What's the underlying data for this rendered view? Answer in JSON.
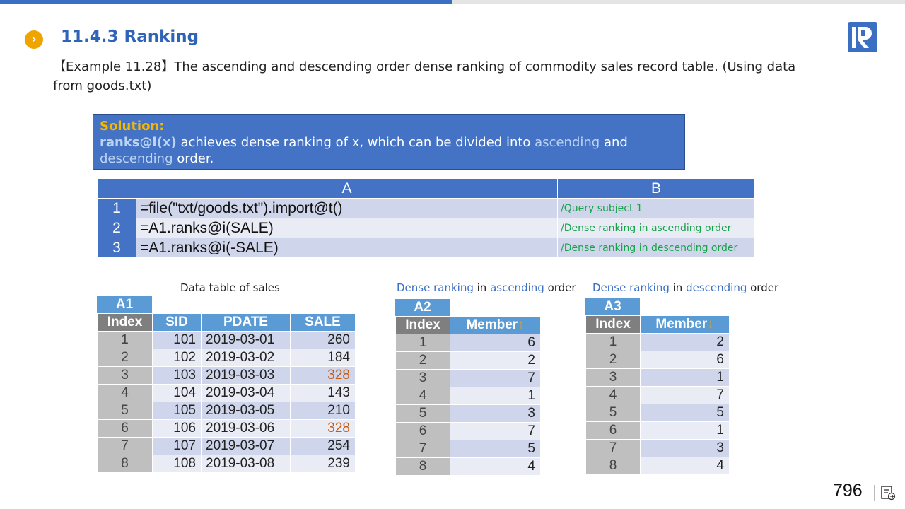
{
  "header": {
    "section_title": "11.4.3 Ranking",
    "example_text": "【Example 11.28】The ascending and descending order dense ranking of commodity sales record table. (Using data from goods.txt)"
  },
  "solution": {
    "label": "Solution:",
    "code": "ranks@i(x)",
    "text_1": " achieves dense ranking of x, which can be divided into ",
    "kw_ascending": "ascending",
    "text_2": " and ",
    "kw_descending": "descending",
    "text_3": " order."
  },
  "code_grid": {
    "col_a": "A",
    "col_b": "B",
    "rows": [
      {
        "num": "1",
        "expr": "=file(\"txt/goods.txt\").import@t()",
        "comment": "/Query subject 1"
      },
      {
        "num": "2",
        "expr": "=A1.ranks@i(SALE)",
        "comment": "/Dense ranking in ascending order"
      },
      {
        "num": "3",
        "expr": "=A1.ranks@i(-SALE)",
        "comment": "/Dense ranking in descending order"
      }
    ]
  },
  "captions": {
    "sales": "Data table of sales",
    "asc_a": "Dense ranking",
    "asc_b": " in ",
    "asc_c": "ascending",
    "asc_d": " order",
    "desc_a": "Dense ranking",
    "desc_b": " in ",
    "desc_c": "descending",
    "desc_d": " order"
  },
  "sales_table": {
    "tag": "A1",
    "headers": [
      "Index",
      "SID",
      "PDATE",
      "SALE"
    ],
    "rows": [
      [
        "1",
        "101",
        "2019-03-01",
        "260"
      ],
      [
        "2",
        "102",
        "2019-03-02",
        "184"
      ],
      [
        "3",
        "103",
        "2019-03-03",
        "328"
      ],
      [
        "4",
        "104",
        "2019-03-04",
        "143"
      ],
      [
        "5",
        "105",
        "2019-03-05",
        "210"
      ],
      [
        "6",
        "106",
        "2019-03-06",
        "328"
      ],
      [
        "7",
        "107",
        "2019-03-07",
        "254"
      ],
      [
        "8",
        "108",
        "2019-03-08",
        "239"
      ]
    ]
  },
  "asc_table": {
    "tag": "A2",
    "headers": [
      "Index",
      "Member"
    ],
    "arrow": "↑",
    "rows": [
      [
        "1",
        "6"
      ],
      [
        "2",
        "2"
      ],
      [
        "3",
        "7"
      ],
      [
        "4",
        "1"
      ],
      [
        "5",
        "3"
      ],
      [
        "6",
        "7"
      ],
      [
        "7",
        "5"
      ],
      [
        "8",
        "4"
      ]
    ]
  },
  "desc_table": {
    "tag": "A3",
    "headers": [
      "Index",
      "Member"
    ],
    "arrow": "↓",
    "rows": [
      [
        "1",
        "2"
      ],
      [
        "2",
        "6"
      ],
      [
        "3",
        "1"
      ],
      [
        "4",
        "7"
      ],
      [
        "5",
        "5"
      ],
      [
        "6",
        "1"
      ],
      [
        "7",
        "3"
      ],
      [
        "8",
        "4"
      ]
    ]
  },
  "footer": {
    "page_number": "796"
  },
  "colors": {
    "accent": "#4472c4",
    "title": "#2f63b8",
    "highlight": "#c55a11",
    "comment": "#17a34a",
    "bullet": "#f0a400"
  }
}
